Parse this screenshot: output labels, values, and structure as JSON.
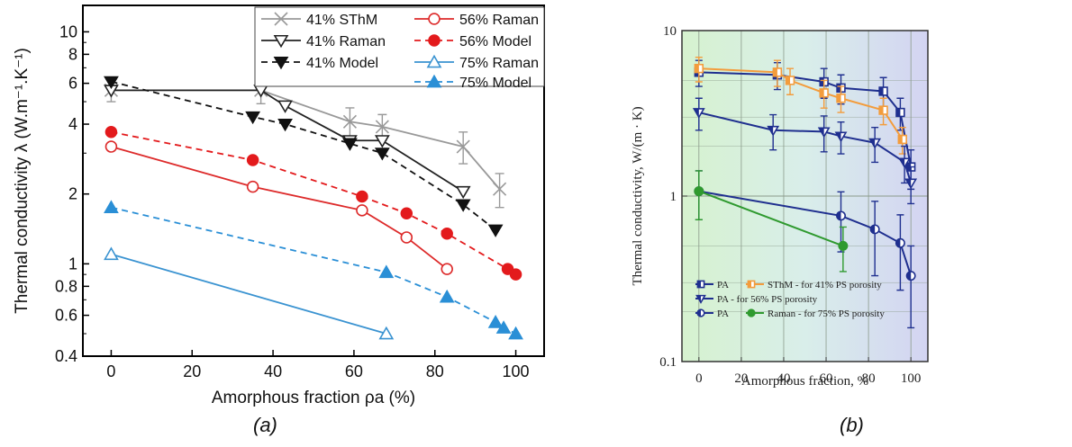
{
  "chart_data": [
    {
      "type": "line",
      "panel": "(a)",
      "title": "",
      "xlabel": "Amorphous fraction ρa (%)",
      "ylabel": "Thermal conductivity λ (W.m⁻¹.K⁻¹)",
      "xlim": [
        -7,
        107
      ],
      "ylim": [
        0.4,
        13
      ],
      "yscale": "log",
      "grid": false,
      "legend_placement": "top-right",
      "x_ticks": [
        0,
        20,
        40,
        60,
        80,
        100
      ],
      "x_tick_labels": [
        "0",
        "20",
        "40",
        "60",
        "80",
        "100"
      ],
      "y_ticks": [
        0.4,
        0.6,
        0.8,
        1,
        2,
        4,
        6,
        8,
        10
      ],
      "y_tick_labels": [
        "0.4",
        "0.6",
        "0.8",
        "1",
        "2",
        "4",
        "6",
        "8",
        "10"
      ],
      "series": [
        {
          "name": "41% SThM",
          "color": "#999999",
          "marker": "x",
          "dash": false,
          "x": [
            0,
            37,
            59,
            67,
            87,
            96
          ],
          "y": [
            5.6,
            5.6,
            4.1,
            3.9,
            3.2,
            2.1
          ],
          "err": [
            0.6,
            0.7,
            0.6,
            0.5,
            0.5,
            0.35
          ]
        },
        {
          "name": "41% Raman",
          "color": "#222222",
          "marker": "tri-down-open",
          "dash": false,
          "x": [
            0,
            37,
            43,
            59,
            67,
            87
          ],
          "y": [
            5.6,
            5.6,
            4.8,
            3.4,
            3.4,
            2.05
          ]
        },
        {
          "name": "41% Model",
          "color": "#111111",
          "marker": "tri-down-filled",
          "dash": true,
          "x": [
            0,
            35,
            43,
            59,
            67,
            87,
            95
          ],
          "y": [
            6.1,
            4.3,
            4.0,
            3.3,
            3.0,
            1.8,
            1.4
          ]
        },
        {
          "name": "56% Raman",
          "color": "#dd2a2a",
          "marker": "circle-open",
          "dash": false,
          "x": [
            0,
            35,
            62,
            73,
            83
          ],
          "y": [
            3.2,
            2.15,
            1.7,
            1.3,
            0.95
          ]
        },
        {
          "name": "56% Model",
          "color": "#e31a1c",
          "marker": "circle-filled",
          "dash": true,
          "x": [
            0,
            35,
            62,
            73,
            83,
            98,
            100
          ],
          "y": [
            3.7,
            2.8,
            1.95,
            1.65,
            1.35,
            0.95,
            0.9
          ]
        },
        {
          "name": "75% Raman",
          "color": "#3a93d1",
          "marker": "tri-up-open",
          "dash": false,
          "x": [
            0,
            68
          ],
          "y": [
            1.1,
            0.5
          ]
        },
        {
          "name": "75% Model",
          "color": "#2a8fd6",
          "marker": "tri-up-filled",
          "dash": true,
          "x": [
            0,
            68,
            83,
            95,
            97,
            100
          ],
          "y": [
            1.75,
            0.92,
            0.72,
            0.56,
            0.53,
            0.5
          ]
        }
      ]
    },
    {
      "type": "line",
      "panel": "(b)",
      "title": "",
      "xlabel": "Amorphous fraction, %",
      "ylabel": "Thermal conductivity, W/(m · K)",
      "xlim": [
        -8,
        108
      ],
      "ylim": [
        0.1,
        10
      ],
      "yscale": "log",
      "grid": true,
      "legend_placement": "bottom-left",
      "x_ticks": [
        0,
        20,
        40,
        60,
        80,
        100
      ],
      "x_tick_labels": [
        "0",
        "20",
        "40",
        "60",
        "80",
        "100"
      ],
      "y_ticks": [
        0.1,
        1,
        10
      ],
      "y_tick_labels": [
        "0.1",
        "1",
        "10"
      ],
      "legend_entries": [
        "PA",
        "SThM - for 41% PS porosity",
        "PA - for 56%  PS porosity",
        "PA",
        "Raman - for 75% PS porosity"
      ],
      "series": [
        {
          "name": "PA (41%)",
          "color": "#1f2f8f",
          "marker": "square-half",
          "x": [
            0,
            37,
            59,
            67,
            87,
            95,
            100
          ],
          "y": [
            5.6,
            5.4,
            4.9,
            4.5,
            4.3,
            3.2,
            1.5
          ],
          "err": [
            1.0,
            1.0,
            1.0,
            0.9,
            0.9,
            0.7,
            0.4
          ]
        },
        {
          "name": "SThM (41%)",
          "color": "#f39c3c",
          "marker": "square-half",
          "x": [
            0,
            37,
            43,
            59,
            67,
            87,
            96
          ],
          "y": [
            5.9,
            5.6,
            5.0,
            4.2,
            3.9,
            3.3,
            2.2
          ],
          "err": [
            1.0,
            1.0,
            0.9,
            0.8,
            0.7,
            0.6,
            0.4
          ]
        },
        {
          "name": "PA (56%)",
          "color": "#1f2f8f",
          "marker": "tri-down-half",
          "x": [
            0,
            35,
            59,
            67,
            83,
            97,
            100
          ],
          "y": [
            3.2,
            2.5,
            2.45,
            2.3,
            2.1,
            1.6,
            1.2
          ],
          "err": [
            0.7,
            0.6,
            0.6,
            0.5,
            0.5,
            0.4,
            0.3
          ]
        },
        {
          "name": "PA (75%)",
          "color": "#1f2f8f",
          "marker": "circle-half",
          "x": [
            0,
            67,
            83,
            95,
            100
          ],
          "y": [
            1.07,
            0.76,
            0.63,
            0.52,
            0.33
          ],
          "err": [
            0.35,
            0.3,
            0.3,
            0.25,
            0.17
          ]
        },
        {
          "name": "Raman (75%)",
          "color": "#2f9a2f",
          "marker": "circle-filled",
          "x": [
            0,
            68
          ],
          "y": [
            1.07,
            0.5
          ],
          "err": [
            0.35,
            0.15
          ]
        }
      ]
    }
  ],
  "captions": [
    "(a)",
    "(b)"
  ]
}
